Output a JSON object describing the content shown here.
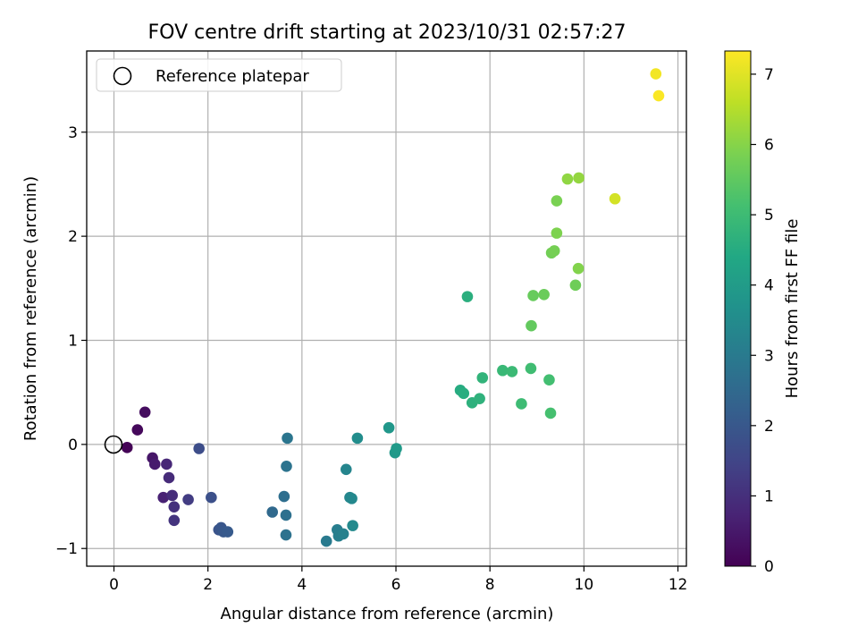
{
  "chart_data": {
    "type": "scatter",
    "title": "FOV centre drift starting at 2023/10/31 02:57:27",
    "xlabel": "Angular distance from reference (arcmin)",
    "ylabel": "Rotation from reference (arcmin)",
    "xlim": [
      -0.58,
      12.18
    ],
    "ylim": [
      -1.17,
      3.78
    ],
    "xticks": [
      0,
      2,
      4,
      6,
      8,
      10,
      12
    ],
    "yticks": [
      -1,
      0,
      1,
      2,
      3
    ],
    "grid": true,
    "legend": {
      "placement": "top-left",
      "entries": [
        "Reference platepar"
      ]
    },
    "reference_point": {
      "x": 0,
      "y": 0
    },
    "colorbar": {
      "label": "Hours from first FF file",
      "colormap": "viridis",
      "range": [
        0,
        7.33
      ],
      "ticks": [
        0,
        1,
        2,
        3,
        4,
        5,
        6,
        7
      ]
    },
    "points": [
      {
        "x": 0.28,
        "y": -0.03,
        "c": 0.05
      },
      {
        "x": 0.5,
        "y": 0.14,
        "c": 0.15
      },
      {
        "x": 0.66,
        "y": 0.31,
        "c": 0.25
      },
      {
        "x": 0.82,
        "y": -0.13,
        "c": 0.45
      },
      {
        "x": 0.87,
        "y": -0.19,
        "c": 0.55
      },
      {
        "x": 1.05,
        "y": -0.51,
        "c": 0.7
      },
      {
        "x": 1.12,
        "y": -0.19,
        "c": 0.8
      },
      {
        "x": 1.17,
        "y": -0.32,
        "c": 0.9
      },
      {
        "x": 1.24,
        "y": -0.49,
        "c": 0.95
      },
      {
        "x": 1.28,
        "y": -0.6,
        "c": 1.0
      },
      {
        "x": 1.28,
        "y": -0.73,
        "c": 1.1
      },
      {
        "x": 1.58,
        "y": -0.53,
        "c": 1.3
      },
      {
        "x": 1.81,
        "y": -0.04,
        "c": 1.7
      },
      {
        "x": 2.07,
        "y": -0.51,
        "c": 1.8
      },
      {
        "x": 2.23,
        "y": -0.82,
        "c": 1.9
      },
      {
        "x": 2.28,
        "y": -0.8,
        "c": 1.95
      },
      {
        "x": 2.33,
        "y": -0.84,
        "c": 2.0
      },
      {
        "x": 2.42,
        "y": -0.84,
        "c": 2.05
      },
      {
        "x": 3.37,
        "y": -0.65,
        "c": 2.5
      },
      {
        "x": 3.62,
        "y": -0.5,
        "c": 2.65
      },
      {
        "x": 3.66,
        "y": -0.68,
        "c": 2.7
      },
      {
        "x": 3.66,
        "y": -0.87,
        "c": 2.75
      },
      {
        "x": 3.67,
        "y": -0.21,
        "c": 2.8
      },
      {
        "x": 3.69,
        "y": 0.06,
        "c": 2.85
      },
      {
        "x": 4.52,
        "y": -0.93,
        "c": 3.0
      },
      {
        "x": 4.75,
        "y": -0.82,
        "c": 3.1
      },
      {
        "x": 4.78,
        "y": -0.88,
        "c": 3.15
      },
      {
        "x": 4.88,
        "y": -0.86,
        "c": 3.2
      },
      {
        "x": 4.94,
        "y": -0.24,
        "c": 3.3
      },
      {
        "x": 5.02,
        "y": -0.51,
        "c": 3.35
      },
      {
        "x": 5.06,
        "y": -0.52,
        "c": 3.4
      },
      {
        "x": 5.08,
        "y": -0.78,
        "c": 3.45
      },
      {
        "x": 5.18,
        "y": 0.06,
        "c": 3.55
      },
      {
        "x": 5.85,
        "y": 0.16,
        "c": 3.85
      },
      {
        "x": 5.98,
        "y": -0.08,
        "c": 3.9
      },
      {
        "x": 6.01,
        "y": -0.04,
        "c": 3.95
      },
      {
        "x": 7.37,
        "y": 0.52,
        "c": 4.5
      },
      {
        "x": 7.44,
        "y": 0.49,
        "c": 4.55
      },
      {
        "x": 7.52,
        "y": 1.42,
        "c": 4.6
      },
      {
        "x": 7.62,
        "y": 0.4,
        "c": 4.65
      },
      {
        "x": 7.78,
        "y": 0.44,
        "c": 4.7
      },
      {
        "x": 7.84,
        "y": 0.64,
        "c": 4.75
      },
      {
        "x": 8.27,
        "y": 0.71,
        "c": 4.9
      },
      {
        "x": 8.47,
        "y": 0.7,
        "c": 4.95
      },
      {
        "x": 8.67,
        "y": 0.39,
        "c": 5.0
      },
      {
        "x": 8.87,
        "y": 0.73,
        "c": 5.05
      },
      {
        "x": 8.88,
        "y": 1.14,
        "c": 5.55
      },
      {
        "x": 8.92,
        "y": 1.43,
        "c": 5.6
      },
      {
        "x": 9.15,
        "y": 1.44,
        "c": 5.65
      },
      {
        "x": 9.26,
        "y": 0.62,
        "c": 5.1
      },
      {
        "x": 9.29,
        "y": 0.3,
        "c": 5.15
      },
      {
        "x": 9.31,
        "y": 1.84,
        "c": 5.75
      },
      {
        "x": 9.37,
        "y": 1.86,
        "c": 5.8
      },
      {
        "x": 9.42,
        "y": 2.34,
        "c": 5.85
      },
      {
        "x": 9.42,
        "y": 2.03,
        "c": 5.9
      },
      {
        "x": 9.65,
        "y": 2.55,
        "c": 6.1
      },
      {
        "x": 9.82,
        "y": 1.53,
        "c": 5.7
      },
      {
        "x": 9.88,
        "y": 1.69,
        "c": 5.95
      },
      {
        "x": 9.89,
        "y": 2.56,
        "c": 6.15
      },
      {
        "x": 10.66,
        "y": 2.36,
        "c": 6.85
      },
      {
        "x": 11.53,
        "y": 3.56,
        "c": 7.2
      },
      {
        "x": 11.59,
        "y": 3.35,
        "c": 7.3
      }
    ]
  }
}
